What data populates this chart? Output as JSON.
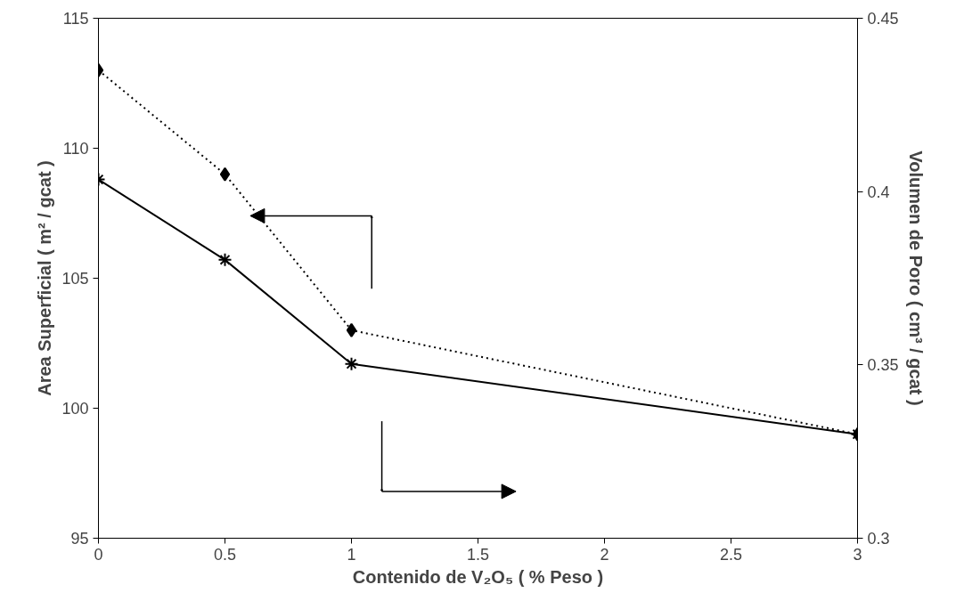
{
  "chart_data": {
    "type": "line",
    "xlabel": "Contenido de V₂O₅ ( % Peso )",
    "ylabel": "Area Superficial ( m² / gcat )",
    "y2label": "Volumen de Poro ( cm³ / gcat )",
    "x": [
      0,
      0.5,
      1,
      3
    ],
    "series": [
      {
        "color": "#000000",
        "values": [
          113,
          109,
          103,
          99
        ],
        "marker": "diamond",
        "line_style": "dotted"
      },
      {
        "color": "#000000",
        "values": [
          0.4035,
          0.3803,
          0.3503,
          0.33
        ],
        "marker": "cross",
        "line_style": "solid",
        "axis": "y2"
      }
    ],
    "xlim": [
      0,
      3
    ],
    "xticks": [
      0,
      0.5,
      1,
      1.5,
      2,
      2.5,
      3
    ],
    "ylim": [
      95,
      115
    ],
    "yticks": [
      95,
      100,
      105,
      110,
      115
    ],
    "y2lim": [
      0.3,
      0.45
    ],
    "y2ticks": [
      0.3,
      0.35,
      0.4,
      0.45
    ],
    "grid": false
  }
}
